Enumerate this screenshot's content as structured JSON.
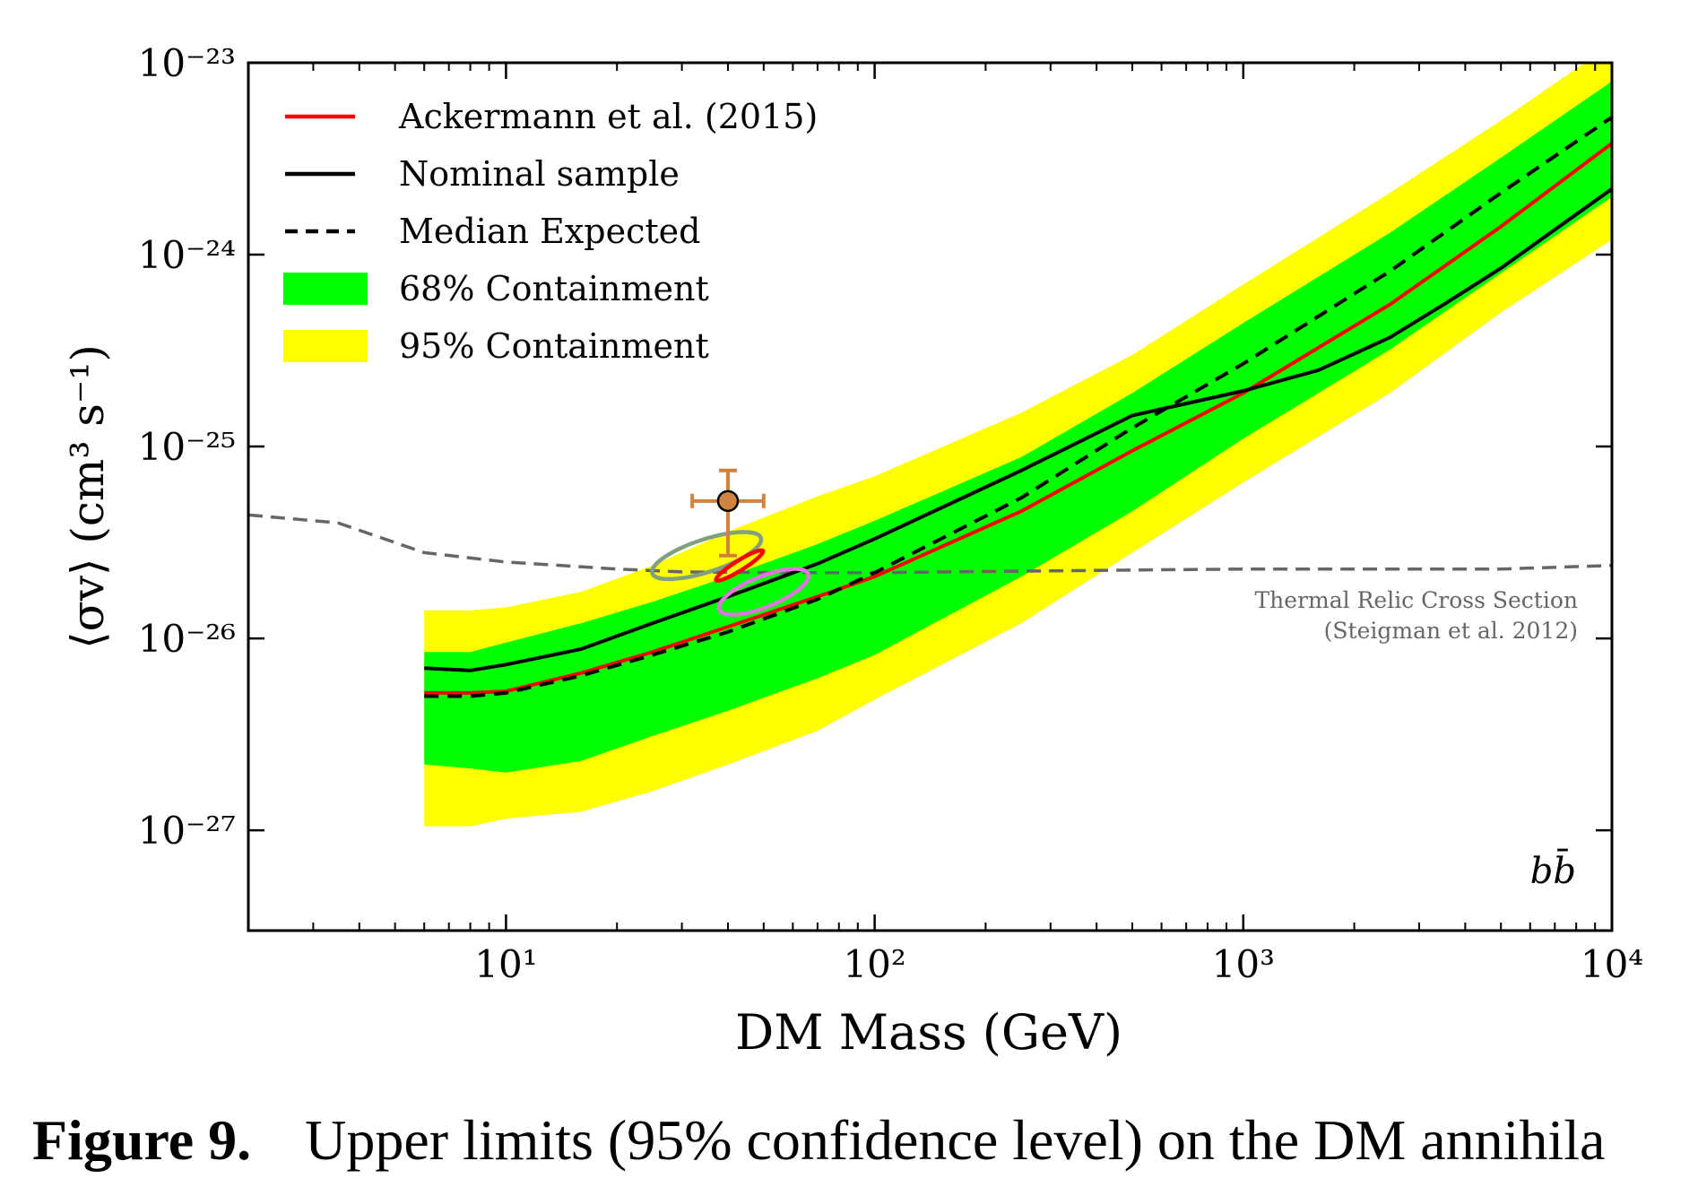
{
  "chart_data": {
    "type": "line",
    "xlabel": "DM Mass (GeV)",
    "ylabel": "⟨σv⟩ (cm³ s⁻¹)",
    "xscale": "log",
    "yscale": "log",
    "xlim": [
      2,
      10000
    ],
    "ylim": [
      3e-28,
      1e-23
    ],
    "grid": false,
    "legend_position": "top-left",
    "x_ticks": [
      {
        "value": 10,
        "label": "10¹"
      },
      {
        "value": 100,
        "label": "10²"
      },
      {
        "value": 1000,
        "label": "10³"
      },
      {
        "value": 10000,
        "label": "10⁴"
      }
    ],
    "y_ticks": [
      {
        "value": 1e-27,
        "label": "10⁻²⁷"
      },
      {
        "value": 1e-26,
        "label": "10⁻²⁶"
      },
      {
        "value": 1e-25,
        "label": "10⁻²⁵"
      },
      {
        "value": 1e-24,
        "label": "10⁻²⁴"
      },
      {
        "value": 1e-23,
        "label": "10⁻²³"
      }
    ],
    "channel_label": "bb̄",
    "bands": [
      {
        "name": "95% Containment",
        "color": "#ffff00",
        "x": [
          6,
          8,
          10,
          16,
          25,
          40,
          70,
          100,
          250,
          500,
          1000,
          2500,
          5000,
          10000
        ],
        "lower": [
          1.05e-27,
          1.05e-27,
          1.15e-27,
          1.25e-27,
          1.6e-27,
          2.2e-27,
          3.3e-27,
          4.8e-27,
          1.2e-26,
          2.8e-26,
          6.5e-26,
          1.9e-25,
          5e-25,
          1.2e-24
        ],
        "upper": [
          1.4e-26,
          1.4e-26,
          1.45e-26,
          1.75e-26,
          2.4e-26,
          3.6e-26,
          5.5e-26,
          7e-26,
          1.5e-25,
          3e-25,
          7e-25,
          2.1e-24,
          5e-24,
          1.25e-23
        ]
      },
      {
        "name": "68% Containment",
        "color": "#00ff00",
        "x": [
          6,
          8,
          10,
          16,
          25,
          40,
          70,
          100,
          250,
          500,
          1000,
          2500,
          5000,
          10000
        ],
        "lower": [
          2.2e-27,
          2.1e-27,
          2e-27,
          2.3e-27,
          3.1e-27,
          4.2e-27,
          6.2e-27,
          8.2e-27,
          2.1e-26,
          4.6e-26,
          1.1e-25,
          3.2e-25,
          8e-25,
          2e-24
        ],
        "upper": [
          8.5e-27,
          8.5e-27,
          9.5e-27,
          1.2e-26,
          1.55e-26,
          2.1e-26,
          3.1e-26,
          4.1e-26,
          8.8e-26,
          1.9e-25,
          4.4e-25,
          1.3e-24,
          3.2e-24,
          8e-24
        ]
      }
    ],
    "series": [
      {
        "name": "Ackermann et al. (2015)",
        "color": "#ff0000",
        "dash": "solid",
        "x": [
          6,
          8,
          10,
          16,
          25,
          40,
          70,
          100,
          250,
          500,
          1000,
          2500,
          5000,
          10000
        ],
        "y": [
          5.2e-27,
          5.2e-27,
          5.3e-27,
          6.6e-27,
          8.5e-27,
          1.15e-26,
          1.65e-26,
          2.1e-26,
          4.6e-26,
          9.5e-26,
          1.9e-25,
          5.5e-25,
          1.4e-24,
          3.8e-24
        ]
      },
      {
        "name": "Nominal sample",
        "color": "#000000",
        "dash": "solid",
        "x": [
          6,
          8,
          10,
          16,
          25,
          40,
          70,
          100,
          250,
          500,
          1000,
          1600,
          2500,
          3500,
          5000,
          10000
        ],
        "y": [
          7e-27,
          6.8e-27,
          7.3e-27,
          8.8e-27,
          1.2e-26,
          1.65e-26,
          2.45e-26,
          3.3e-26,
          7.5e-26,
          1.45e-25,
          1.95e-25,
          2.5e-25,
          3.7e-25,
          5.5e-25,
          8.5e-25,
          2.2e-24
        ]
      },
      {
        "name": "Median Expected",
        "color": "#000000",
        "dash": "dashed",
        "x": [
          6,
          8,
          10,
          16,
          25,
          40,
          70,
          100,
          250,
          500,
          1000,
          2500,
          5000,
          10000
        ],
        "y": [
          5e-27,
          5e-27,
          5.2e-27,
          6.4e-27,
          8.2e-27,
          1.08e-26,
          1.6e-26,
          2.2e-26,
          5.4e-26,
          1.25e-25,
          2.7e-25,
          8.2e-25,
          2.1e-24,
          5.2e-24
        ]
      }
    ],
    "reference_line": {
      "name": "Thermal Relic Cross Section",
      "citation": "(Steigman et al. 2012)",
      "color": "#666666",
      "x": [
        2,
        3.5,
        6,
        10,
        20,
        30,
        60,
        100,
        300,
        1000,
        5000,
        10000
      ],
      "y": [
        4.4e-26,
        4e-26,
        2.8e-26,
        2.5e-26,
        2.3e-26,
        2.22e-26,
        2.2e-26,
        2.2e-26,
        2.25e-26,
        2.3e-26,
        2.3e-26,
        2.4e-26
      ]
    },
    "point": {
      "x": 40,
      "y": 5.2e-26,
      "x_err": [
        32,
        50
      ],
      "y_err": [
        2.7e-26,
        7.5e-26
      ],
      "color": "#cd853f",
      "errcolor": "#d2823c"
    },
    "contours": [
      {
        "color": "#80a080",
        "cx": 35,
        "cy": 2.7e-26,
        "rx_dec": 0.155,
        "ry_dec": 0.085,
        "tilt_deg": 18
      },
      {
        "color": "#ff0000",
        "cx": 43,
        "cy": 2.4e-26,
        "rx_dec": 0.075,
        "ry_dec": 0.025,
        "tilt_deg": 32
      },
      {
        "color": "#dd77dd",
        "cx": 50,
        "cy": 1.75e-26,
        "rx_dec": 0.13,
        "ry_dec": 0.08,
        "tilt_deg": 22
      }
    ]
  },
  "legend": [
    {
      "label": "Ackermann et al. (2015)",
      "kind": "line",
      "color": "#ff0000",
      "dash": "solid"
    },
    {
      "label": "Nominal sample",
      "kind": "line",
      "color": "#000000",
      "dash": "solid"
    },
    {
      "label": "Median Expected",
      "kind": "line",
      "color": "#000000",
      "dash": "dashed"
    },
    {
      "label": "68% Containment",
      "kind": "patch",
      "color": "#00ff00"
    },
    {
      "label": "95% Containment",
      "kind": "patch",
      "color": "#ffff00"
    }
  ],
  "caption": {
    "label": "Figure 9.",
    "text": "Upper limits (95% confidence level) on the DM annihila"
  }
}
